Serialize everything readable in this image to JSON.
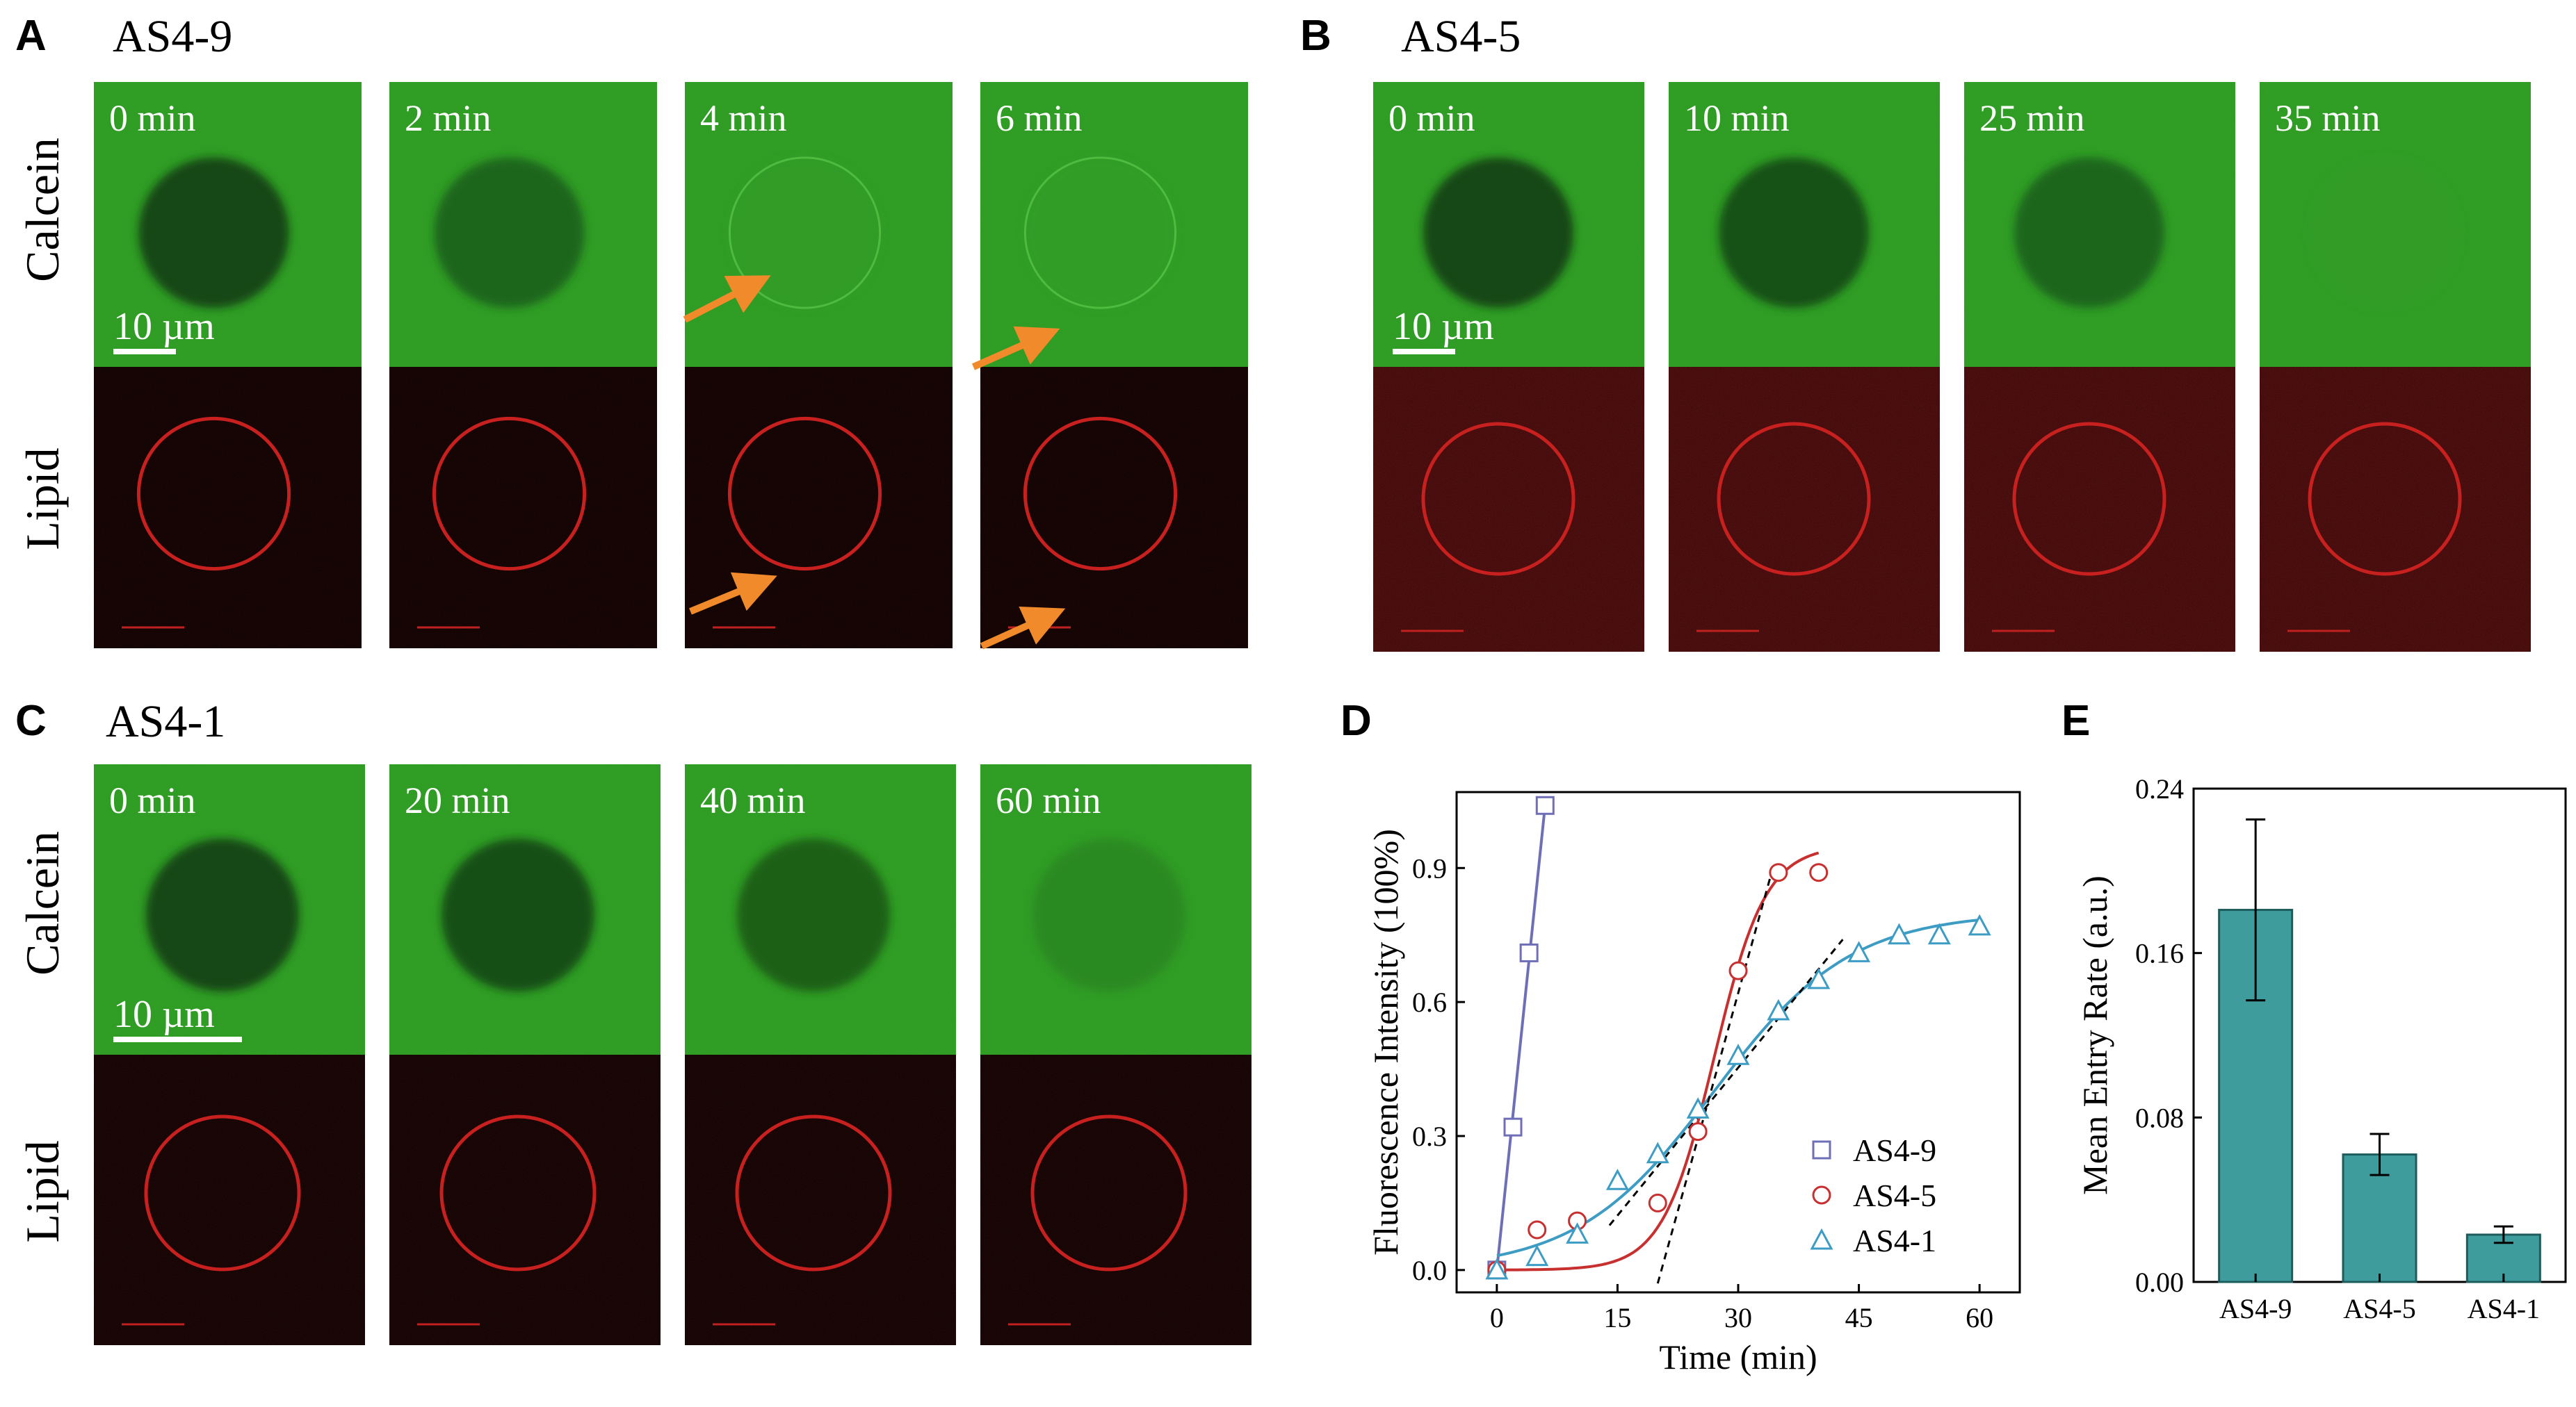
{
  "colors": {
    "calcein_bg": "#2e9a22",
    "lipid_bg": "#0d0202",
    "lipid_bg_b": "#3a0808",
    "lipid_ring": "#c8201e",
    "arrow": "#f08a2a",
    "as49": "#6f6fb8",
    "as45": "#c83030",
    "as41": "#3d9cc4",
    "bar_fill": "#3f9c9c"
  },
  "panels": [
    {
      "label": "A",
      "title": "AS4-9",
      "row_labels": [
        "Calcein",
        "Lipid"
      ],
      "scale_bar": "10 µm",
      "timepoints": [
        "0 min",
        "2 min",
        "4 min",
        "6 min"
      ],
      "inner_fill": [
        0.0,
        0.35,
        0.95,
        0.97
      ]
    },
    {
      "label": "B",
      "title": "AS4-5",
      "scale_bar": "10 µm",
      "timepoints": [
        "0 min",
        "10 min",
        "25 min",
        "35 min"
      ],
      "inner_fill": [
        0.0,
        0.12,
        0.35,
        0.95
      ]
    },
    {
      "label": "C",
      "title": "AS4-1",
      "row_labels": [
        "Calcein",
        "Lipid"
      ],
      "scale_bar": "10 µm",
      "timepoints": [
        "0 min",
        "20 min",
        "40 min",
        "60 min"
      ],
      "inner_fill": [
        0.0,
        0.1,
        0.3,
        0.75
      ]
    }
  ],
  "chart_data": [
    {
      "panel": "D",
      "type": "scatter",
      "xlabel": "Time (min)",
      "ylabel": "Fluorescence Intensity (100%)",
      "xlim": [
        -5,
        65
      ],
      "ylim": [
        -0.05,
        1.07
      ],
      "xticks": [
        0,
        15,
        30,
        45,
        60
      ],
      "yticks": [
        0.0,
        0.3,
        0.6,
        0.9
      ],
      "ytick_labels": [
        "0.0",
        "0.3",
        "0.6",
        "0.9"
      ],
      "legend_position": "bottom-right",
      "series": [
        {
          "name": "AS4-9",
          "marker": "square",
          "x": [
            0,
            2,
            4,
            6
          ],
          "y": [
            0.0,
            0.32,
            0.71,
            1.04
          ]
        },
        {
          "name": "AS4-5",
          "marker": "circle",
          "x": [
            0,
            5,
            10,
            20,
            25,
            30,
            35,
            40
          ],
          "y": [
            0.0,
            0.09,
            0.11,
            0.15,
            0.31,
            0.67,
            0.89,
            0.89
          ]
        },
        {
          "name": "AS4-1",
          "marker": "triangle",
          "x": [
            0,
            5,
            10,
            15,
            20,
            25,
            30,
            35,
            40,
            45,
            50,
            55,
            60
          ],
          "y": [
            0.0,
            0.03,
            0.08,
            0.2,
            0.26,
            0.36,
            0.48,
            0.58,
            0.65,
            0.71,
            0.75,
            0.75,
            0.77
          ]
        }
      ]
    },
    {
      "panel": "E",
      "type": "bar",
      "ylabel": "Mean Entry Rate (a.u.)",
      "ylim": [
        0,
        0.24
      ],
      "yticks": [
        0.0,
        0.08,
        0.16,
        0.24
      ],
      "ytick_labels": [
        "0.00",
        "0.08",
        "0.16",
        "0.24"
      ],
      "categories": [
        "AS4-9",
        "AS4-5",
        "AS4-1"
      ],
      "values": [
        0.181,
        0.062,
        0.023
      ],
      "errors": [
        0.044,
        0.01,
        0.004
      ]
    }
  ]
}
